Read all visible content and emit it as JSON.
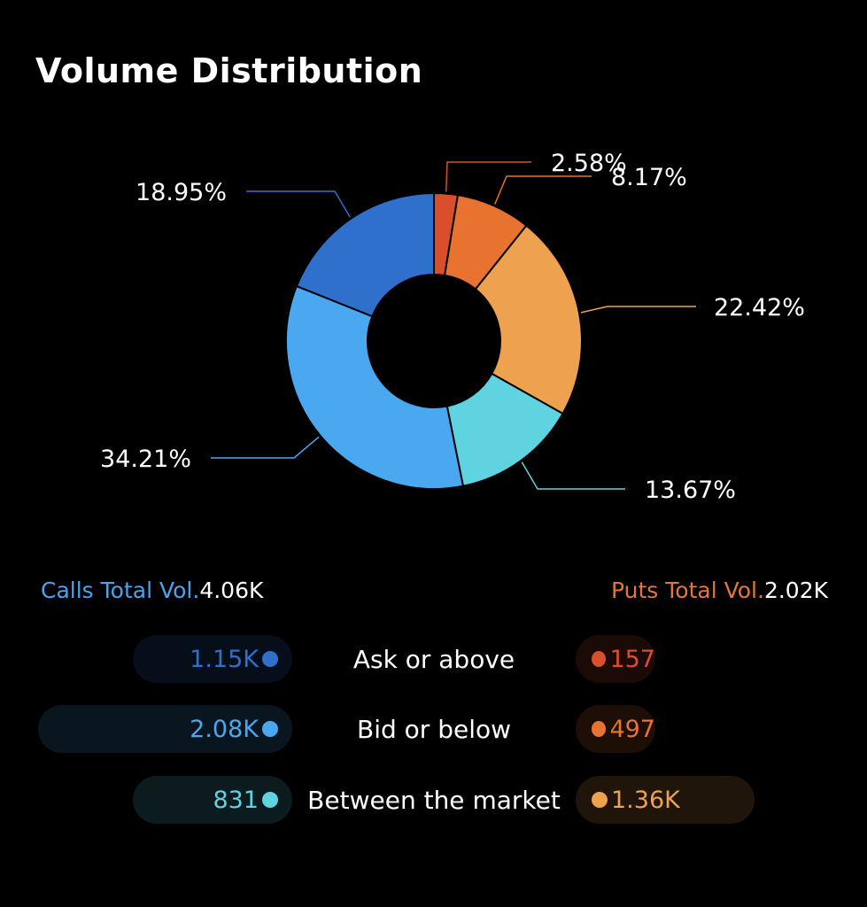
{
  "title": "Volume Distribution",
  "chart_data": {
    "type": "pie",
    "title": "Volume Distribution",
    "donut": true,
    "slices": [
      {
        "label": "2.58%",
        "value": 2.58,
        "color": "#d94f2b"
      },
      {
        "label": "8.17%",
        "value": 8.17,
        "color": "#e8722f"
      },
      {
        "label": "22.42%",
        "value": 22.42,
        "color": "#eea24f"
      },
      {
        "label": "13.67%",
        "value": 13.67,
        "color": "#5fd4e0"
      },
      {
        "label": "34.21%",
        "value": 34.21,
        "color": "#4aa8f0"
      },
      {
        "label": "18.95%",
        "value": 18.95,
        "color": "#2f70cc"
      }
    ]
  },
  "totals": {
    "calls_label": "Calls Total Vol.",
    "calls_value": "4.06K",
    "puts_label": "Puts Total Vol.",
    "puts_value": "2.02K"
  },
  "rows": [
    {
      "category": "Ask or above",
      "calls": "1.15K",
      "calls_fraction": 0.2833,
      "calls_color": "#2f70cc",
      "puts": "157",
      "puts_fraction": 0.0777,
      "puts_color": "#d94f2b"
    },
    {
      "category": "Bid or below",
      "calls": "2.08K",
      "calls_fraction": 0.5123,
      "calls_color": "#4aa8f0",
      "puts": "497",
      "puts_fraction": 0.246,
      "puts_color": "#e8722f"
    },
    {
      "category": "Between the market",
      "calls": "831",
      "calls_fraction": 0.2047,
      "calls_color": "#5fd4e0",
      "puts": "1.36K",
      "puts_fraction": 0.6733,
      "puts_color": "#eea24f"
    }
  ]
}
